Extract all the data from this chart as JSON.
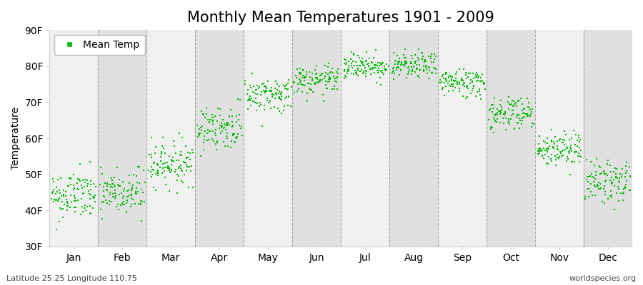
{
  "title": "Monthly Mean Temperatures 1901 - 2009",
  "ylabel": "Temperature",
  "subtitle_left": "Latitude 25.25 Longitude 110.75",
  "subtitle_right": "worldspecies.org",
  "legend_label": "Mean Temp",
  "marker_color": "#00bb00",
  "background_color": "#ffffff",
  "band_color_light": "#f0f0f0",
  "band_color_dark": "#e0e0e0",
  "grid_color": "#888888",
  "ytick_labels": [
    "30F",
    "40F",
    "50F",
    "60F",
    "70F",
    "80F",
    "90F"
  ],
  "ytick_values": [
    30,
    40,
    50,
    60,
    70,
    80,
    90
  ],
  "ylim": [
    30,
    90
  ],
  "months": [
    "Jan",
    "Feb",
    "Mar",
    "Apr",
    "May",
    "Jun",
    "Jul",
    "Aug",
    "Sep",
    "Oct",
    "Nov",
    "Dec"
  ],
  "mean_temps_F": [
    44.0,
    44.5,
    53.0,
    63.0,
    72.0,
    76.0,
    80.0,
    80.0,
    75.5,
    67.0,
    57.0,
    48.0
  ],
  "temp_std": [
    3.5,
    3.5,
    3.0,
    3.0,
    2.5,
    2.0,
    1.8,
    1.8,
    2.0,
    2.5,
    2.5,
    3.0
  ],
  "n_years": 109,
  "seed": 42,
  "dot_size": 2.5,
  "title_fontsize": 15,
  "axis_fontsize": 10,
  "tick_fontsize": 10,
  "subtitle_fontsize": 8
}
